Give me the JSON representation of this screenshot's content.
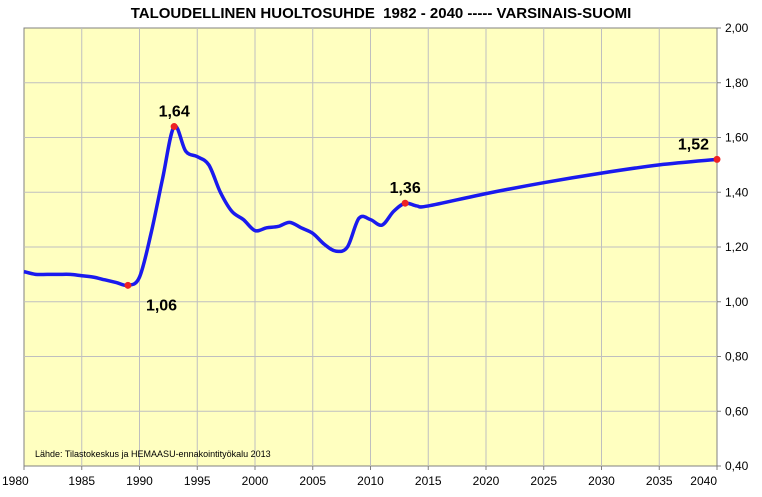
{
  "chart_data": {
    "type": "line",
    "title": "TALOUDELLINEN HUOLTOSUHDE  1982 - 2040 ----- VARSINAIS-SUOMI",
    "xlabel": "",
    "ylabel": "",
    "xlim": [
      1980,
      2040
    ],
    "ylim": [
      0.4,
      2.0
    ],
    "x_ticks": [
      "1980",
      "1985",
      "1990",
      "1995",
      "2000",
      "2005",
      "2010",
      "2015",
      "2020",
      "2025",
      "2030",
      "2035",
      "2040"
    ],
    "y_ticks": [
      "0,40",
      "0,60",
      "0,80",
      "1,00",
      "1,20",
      "1,40",
      "1,60",
      "1,80",
      "2,00"
    ],
    "grid": true,
    "colors": {
      "line": "#1a1aee",
      "marker": "#ee2222",
      "plot_bg": "#ffffc0",
      "grid": "#bfbfbf"
    },
    "series": [
      {
        "x": [
          1980,
          1981,
          1982,
          1983,
          1984,
          1985,
          1986,
          1987,
          1988,
          1989,
          1990,
          1991,
          1992,
          1993,
          1994,
          1995,
          1996,
          1997,
          1998,
          1999,
          2000,
          2001,
          2002,
          2003,
          2004,
          2005,
          2006,
          2007,
          2008,
          2009,
          2010,
          2011,
          2012,
          2013,
          2014,
          2015,
          2020,
          2025,
          2030,
          2035,
          2040
        ],
        "y": [
          1.11,
          1.1,
          1.1,
          1.1,
          1.1,
          1.095,
          1.09,
          1.08,
          1.07,
          1.06,
          1.09,
          1.25,
          1.45,
          1.64,
          1.55,
          1.53,
          1.5,
          1.4,
          1.33,
          1.3,
          1.26,
          1.27,
          1.275,
          1.29,
          1.27,
          1.25,
          1.21,
          1.185,
          1.2,
          1.305,
          1.3,
          1.28,
          1.33,
          1.36,
          1.35,
          1.35,
          1.395,
          1.435,
          1.47,
          1.5,
          1.52
        ]
      }
    ],
    "annotations": [
      {
        "x": 1989,
        "y": 1.06,
        "label": "1,06",
        "pos": "below-right"
      },
      {
        "x": 1993,
        "y": 1.64,
        "label": "1,64",
        "pos": "above"
      },
      {
        "x": 2013,
        "y": 1.36,
        "label": "1,36",
        "pos": "above"
      },
      {
        "x": 2040,
        "y": 1.52,
        "label": "1,52",
        "pos": "above-left"
      }
    ],
    "source": "Lähde: Tilastokeskus ja HEMAASU-ennakointityökalu 2013"
  }
}
